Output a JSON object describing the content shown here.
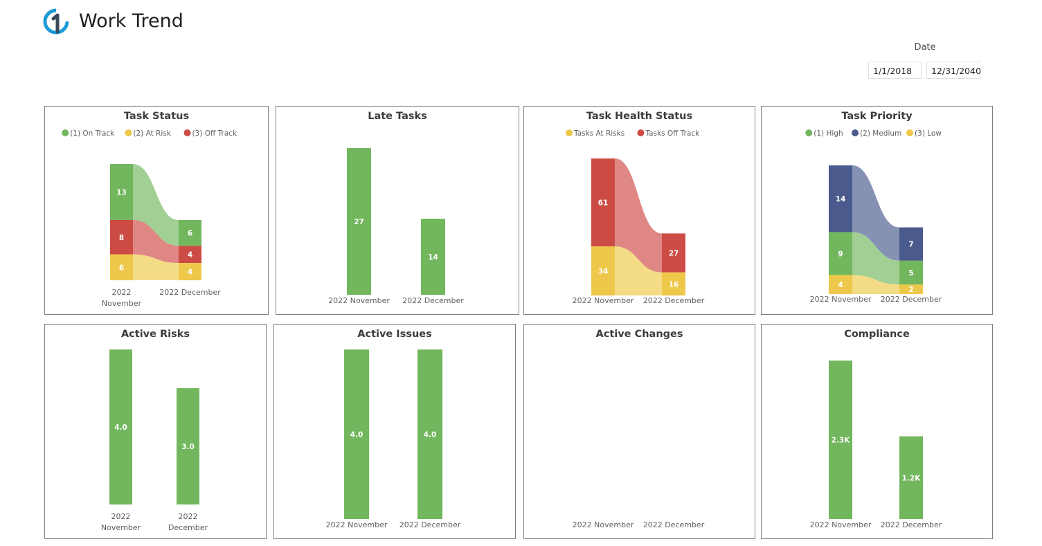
{
  "header": {
    "title": "Work Trend",
    "logo_icon": "one-circle-logo-icon"
  },
  "date_filter": {
    "label": "Date",
    "start": "1/1/2018",
    "end": "12/31/2040"
  },
  "colors": {
    "green": "#72b65e",
    "red": "#cd4b45",
    "yellow": "#eec84a",
    "navy": "#4a5a8c"
  },
  "chart_data": [
    {
      "id": "task-status",
      "type": "ribbon",
      "title": "Task Status",
      "categories": [
        "2022 November",
        "2022 December"
      ],
      "legend": [
        {
          "name": "(1) On Track",
          "color": "#72b65e"
        },
        {
          "name": "(2) At Risk",
          "color": "#eec84a"
        },
        {
          "name": "(3) Off Track",
          "color": "#cd4b45"
        }
      ],
      "series": [
        {
          "name": "(1) On Track",
          "color": "#72b65e",
          "values": [
            13,
            6
          ]
        },
        {
          "name": "(3) Off Track",
          "color": "#cd4b45",
          "values": [
            8,
            4
          ]
        },
        {
          "name": "(2) At Risk",
          "color": "#eec84a",
          "values": [
            6,
            4
          ]
        }
      ]
    },
    {
      "id": "late-tasks",
      "type": "bar",
      "title": "Late Tasks",
      "categories": [
        "2022 November",
        "2022 December"
      ],
      "values": [
        27,
        14
      ],
      "labels": [
        "27",
        "14"
      ],
      "color": "#72b65e"
    },
    {
      "id": "task-health-status",
      "type": "ribbon",
      "title": "Task Health Status",
      "categories": [
        "2022 November",
        "2022 December"
      ],
      "legend": [
        {
          "name": "Tasks At Risks",
          "color": "#eec84a"
        },
        {
          "name": "Tasks Off Track",
          "color": "#cd4b45"
        }
      ],
      "series": [
        {
          "name": "Tasks Off Track",
          "color": "#cd4b45",
          "values": [
            61,
            27
          ]
        },
        {
          "name": "Tasks At Risks",
          "color": "#eec84a",
          "values": [
            34,
            16
          ]
        }
      ]
    },
    {
      "id": "task-priority",
      "type": "ribbon",
      "title": "Task Priority",
      "categories": [
        "2022 November",
        "2022 December"
      ],
      "legend": [
        {
          "name": "(1) High",
          "color": "#72b65e"
        },
        {
          "name": "(2) Medium",
          "color": "#4a5a8c"
        },
        {
          "name": "(3) Low",
          "color": "#eec84a"
        }
      ],
      "series": [
        {
          "name": "(2) Medium",
          "color": "#4a5a8c",
          "values": [
            14,
            7
          ]
        },
        {
          "name": "(1) High",
          "color": "#72b65e",
          "values": [
            9,
            5
          ]
        },
        {
          "name": "(3) Low",
          "color": "#eec84a",
          "values": [
            4,
            2
          ]
        }
      ]
    },
    {
      "id": "active-risks",
      "type": "bar",
      "title": "Active Risks",
      "categories": [
        "2022 November",
        "2022 December"
      ],
      "values": [
        4.0,
        3.0
      ],
      "labels": [
        "4.0",
        "3.0"
      ],
      "color": "#72b65e"
    },
    {
      "id": "active-issues",
      "type": "bar",
      "title": "Active Issues",
      "categories": [
        "2022 November",
        "2022 December"
      ],
      "values": [
        4.0,
        4.0
      ],
      "labels": [
        "4.0",
        "4.0"
      ],
      "color": "#72b65e"
    },
    {
      "id": "active-changes",
      "type": "bar",
      "title": "Active Changes",
      "categories": [
        "2022 November",
        "2022 December"
      ],
      "values": [],
      "labels": [],
      "color": "#72b65e"
    },
    {
      "id": "compliance",
      "type": "bar",
      "title": "Compliance",
      "categories": [
        "2022 November",
        "2022 December"
      ],
      "values": [
        2300,
        1200
      ],
      "labels": [
        "2.3K",
        "1.2K"
      ],
      "color": "#72b65e"
    }
  ]
}
